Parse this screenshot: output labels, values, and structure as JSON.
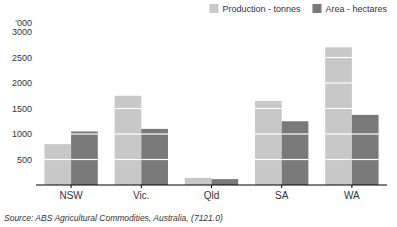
{
  "chart_data": {
    "type": "bar",
    "categories": [
      "NSW",
      "Vic.",
      "Qld",
      "SA",
      "WA"
    ],
    "series": [
      {
        "name": "Production - tonnes",
        "color": "#c8c8c8",
        "values": [
          800,
          1750,
          140,
          1650,
          2700
        ]
      },
      {
        "name": "Area - hectares",
        "color": "#797979",
        "values": [
          1050,
          1100,
          115,
          1250,
          1375
        ]
      }
    ],
    "ylabel": "'000",
    "ylim": [
      0,
      3000
    ],
    "yticks": [
      500,
      1000,
      1500,
      2000,
      2500,
      3000
    ],
    "legend": "upper right",
    "annotations": [
      "Source: ABS Agricultural Commodities, Australia, (7121.0)"
    ]
  }
}
